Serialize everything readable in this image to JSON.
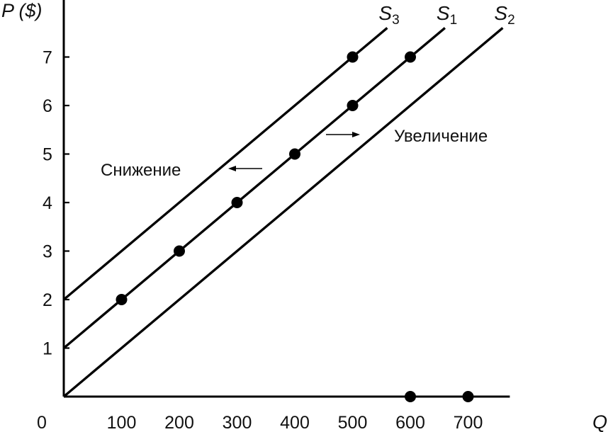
{
  "chart_data": {
    "type": "line",
    "y_axis_label": "P ($)",
    "x_axis_label": "Q",
    "origin_label": "0",
    "x_ticks": [
      100,
      200,
      300,
      400,
      500,
      600,
      700
    ],
    "y_ticks": [
      1,
      2,
      3,
      4,
      5,
      6,
      7
    ],
    "xlim": [
      0,
      760
    ],
    "ylim": [
      0,
      7.9
    ],
    "grid": false,
    "series": [
      {
        "name": "S",
        "subscript": "3",
        "label_text": "S3",
        "intercept": 2,
        "x_end": 560,
        "marked_points": [
          [
            500,
            7
          ]
        ]
      },
      {
        "name": "S",
        "subscript": "1",
        "label_text": "S1",
        "intercept": 1,
        "x_end": 660,
        "marked_points": [
          [
            100,
            2
          ],
          [
            200,
            3
          ],
          [
            300,
            4
          ],
          [
            400,
            5
          ],
          [
            500,
            6
          ],
          [
            600,
            7
          ]
        ]
      },
      {
        "name": "S",
        "subscript": "2",
        "label_text": "S2",
        "intercept": 0,
        "x_end": 760,
        "marked_points": []
      }
    ],
    "axis_markers": [
      [
        600,
        0
      ],
      [
        700,
        0
      ]
    ],
    "annotations": [
      {
        "text": "Снижение",
        "arrow": "left"
      },
      {
        "text": "Увеличение",
        "arrow": "right"
      }
    ]
  }
}
